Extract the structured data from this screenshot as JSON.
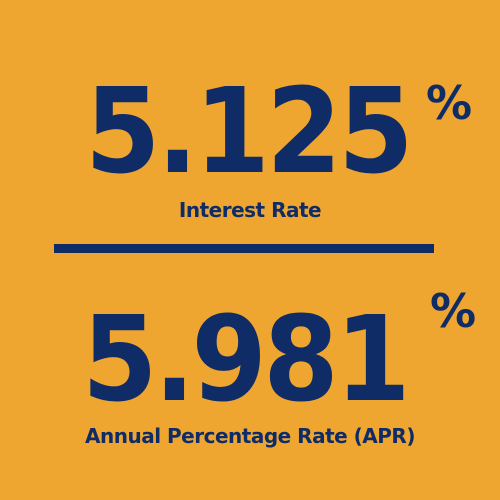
{
  "interest": {
    "value": "5.125",
    "percent_sign": "%",
    "label": "Interest Rate"
  },
  "apr": {
    "value": "5.981",
    "percent_sign": "%",
    "label": "Annual Percentage Rate (APR)"
  },
  "colors": {
    "background": "#EFA630",
    "text": "#0F2C67"
  }
}
